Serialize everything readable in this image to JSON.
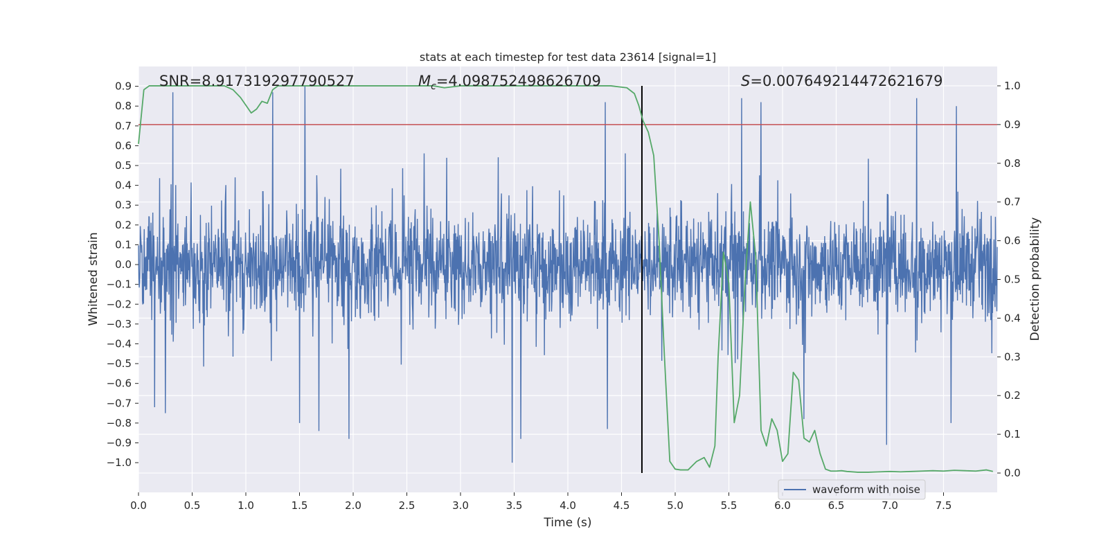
{
  "chart_data": {
    "type": "line",
    "title": "stats at each timestep for test data 23614 [signal=1]",
    "xlabel": "Time (s)",
    "ylabel": "Whitened strain",
    "y2label": "Detection probability",
    "xlim": [
      0.0,
      8.0
    ],
    "ylim": [
      -1.15,
      1.0
    ],
    "y2lim": [
      -0.05,
      1.05
    ],
    "xticks": [
      "0.0",
      "0.5",
      "1.0",
      "1.5",
      "2.0",
      "2.5",
      "3.0",
      "3.5",
      "4.0",
      "4.5",
      "5.0",
      "5.5",
      "6.0",
      "6.5",
      "7.0",
      "7.5"
    ],
    "yticks": [
      "0.9",
      "0.8",
      "0.7",
      "0.6",
      "0.5",
      "0.4",
      "0.3",
      "0.2",
      "0.1",
      "0.0",
      "−0.1",
      "−0.2",
      "−0.3",
      "−0.4",
      "−0.5",
      "−0.6",
      "−0.7",
      "−0.8",
      "−0.9",
      "−1.0"
    ],
    "y2ticks": [
      "1.0",
      "0.9",
      "0.8",
      "0.7",
      "0.6",
      "0.5",
      "0.4",
      "0.3",
      "0.2",
      "0.1",
      "0.0"
    ],
    "grid": true,
    "legend_position": "lower-right",
    "annotations": {
      "snr": "SNR=8.917319297790527",
      "mc_var": "M",
      "mc_sub": "c",
      "mc_value": "=4.098752498626709",
      "s_var": "S",
      "s_value": "=0.007649214472621679"
    },
    "threshold_probability": 0.9,
    "event_time": 4.69,
    "series": [
      {
        "name": "waveform with noise",
        "color": "#4c72b0",
        "axis": "left",
        "kind": "noisy-strain",
        "time_range": [
          0.0,
          8.0
        ],
        "typical_envelope": [
          -0.45,
          0.5
        ],
        "peaks": [
          {
            "x": 0.32,
            "y": 0.87
          },
          {
            "x": 1.25,
            "y": 0.87
          },
          {
            "x": 1.55,
            "y": 0.9
          },
          {
            "x": 4.35,
            "y": 0.82
          },
          {
            "x": 5.62,
            "y": 0.84
          },
          {
            "x": 5.8,
            "y": 0.82
          },
          {
            "x": 7.25,
            "y": 0.84
          },
          {
            "x": 7.62,
            "y": 0.8
          }
        ],
        "troughs": [
          {
            "x": 0.15,
            "y": -0.72
          },
          {
            "x": 0.25,
            "y": -0.75
          },
          {
            "x": 1.5,
            "y": -0.8
          },
          {
            "x": 1.68,
            "y": -0.84
          },
          {
            "x": 1.96,
            "y": -0.88
          },
          {
            "x": 3.48,
            "y": -1.0
          },
          {
            "x": 3.56,
            "y": -0.88
          },
          {
            "x": 4.37,
            "y": -0.83
          },
          {
            "x": 6.2,
            "y": -0.78
          },
          {
            "x": 6.97,
            "y": -0.91
          },
          {
            "x": 7.57,
            "y": -0.8
          }
        ]
      },
      {
        "name": "",
        "color": "#55a868",
        "axis": "right",
        "x": [
          0.0,
          0.05,
          0.1,
          0.15,
          0.2,
          0.3,
          0.4,
          0.5,
          0.6,
          0.7,
          0.8,
          0.88,
          0.95,
          1.0,
          1.05,
          1.1,
          1.15,
          1.2,
          1.25,
          1.3,
          1.35,
          1.4,
          1.5,
          1.6,
          1.8,
          2.0,
          2.2,
          2.4,
          2.6,
          2.75,
          2.85,
          3.0,
          3.2,
          3.4,
          3.6,
          3.8,
          4.0,
          4.2,
          4.4,
          4.55,
          4.62,
          4.66,
          4.7,
          4.75,
          4.8,
          4.85,
          4.9,
          4.95,
          5.0,
          5.05,
          5.12,
          5.2,
          5.27,
          5.32,
          5.37,
          5.4,
          5.45,
          5.5,
          5.55,
          5.6,
          5.65,
          5.7,
          5.75,
          5.8,
          5.85,
          5.9,
          5.95,
          6.0,
          6.05,
          6.1,
          6.15,
          6.2,
          6.25,
          6.3,
          6.35,
          6.4,
          6.45,
          6.5,
          6.55,
          6.6,
          6.7,
          6.8,
          6.9,
          7.0,
          7.1,
          7.2,
          7.3,
          7.4,
          7.5,
          7.6,
          7.7,
          7.8,
          7.9,
          7.96
        ],
        "values": [
          0.85,
          0.99,
          1.0,
          1.0,
          1.0,
          1.0,
          1.0,
          1.0,
          1.0,
          1.0,
          1.0,
          0.99,
          0.97,
          0.95,
          0.93,
          0.94,
          0.96,
          0.955,
          0.99,
          1.0,
          1.0,
          1.0,
          1.0,
          1.0,
          1.0,
          1.0,
          1.0,
          1.0,
          1.0,
          1.0,
          0.995,
          1.0,
          1.0,
          1.0,
          1.0,
          1.0,
          1.0,
          1.0,
          1.0,
          0.995,
          0.98,
          0.95,
          0.91,
          0.88,
          0.82,
          0.6,
          0.3,
          0.03,
          0.01,
          0.008,
          0.008,
          0.03,
          0.04,
          0.015,
          0.07,
          0.3,
          0.57,
          0.49,
          0.13,
          0.2,
          0.49,
          0.7,
          0.56,
          0.11,
          0.07,
          0.14,
          0.11,
          0.03,
          0.05,
          0.26,
          0.24,
          0.09,
          0.08,
          0.11,
          0.05,
          0.01,
          0.005,
          0.005,
          0.006,
          0.004,
          0.002,
          0.002,
          0.003,
          0.004,
          0.003,
          0.004,
          0.005,
          0.006,
          0.005,
          0.007,
          0.006,
          0.005,
          0.008,
          0.004
        ]
      }
    ]
  }
}
